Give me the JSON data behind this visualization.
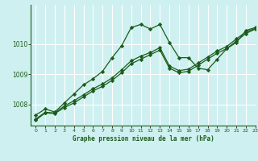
{
  "title": "Graphe pression niveau de la mer (hPa)",
  "bg_color": "#cff0f0",
  "grid_color": "#ffffff",
  "line_color": "#1a5c1a",
  "xlim": [
    -0.5,
    23
  ],
  "ylim": [
    1007.3,
    1011.3
  ],
  "yticks": [
    1008,
    1009,
    1010
  ],
  "xticks": [
    0,
    1,
    2,
    3,
    4,
    5,
    6,
    7,
    8,
    9,
    10,
    11,
    12,
    13,
    14,
    15,
    16,
    17,
    18,
    19,
    20,
    21,
    22,
    23
  ],
  "series1": [
    1007.65,
    1007.85,
    1007.75,
    1008.05,
    1008.35,
    1008.65,
    1008.85,
    1009.1,
    1009.55,
    1009.95,
    1010.55,
    1010.65,
    1010.5,
    1010.65,
    1010.05,
    1009.55,
    1009.55,
    1009.2,
    1009.15,
    1009.5,
    1009.85,
    1010.05,
    1010.45,
    1010.55
  ],
  "series2": [
    1007.48,
    1007.72,
    1007.7,
    1007.9,
    1008.05,
    1008.25,
    1008.45,
    1008.6,
    1008.8,
    1009.05,
    1009.35,
    1009.5,
    1009.65,
    1009.8,
    1009.2,
    1009.05,
    1009.1,
    1009.3,
    1009.5,
    1009.7,
    1009.85,
    1010.1,
    1010.35,
    1010.5
  ],
  "series3": [
    1007.52,
    1007.74,
    1007.72,
    1007.95,
    1008.12,
    1008.32,
    1008.52,
    1008.68,
    1008.88,
    1009.15,
    1009.45,
    1009.6,
    1009.72,
    1009.88,
    1009.27,
    1009.12,
    1009.17,
    1009.37,
    1009.57,
    1009.77,
    1009.92,
    1010.17,
    1010.4,
    1010.52
  ]
}
